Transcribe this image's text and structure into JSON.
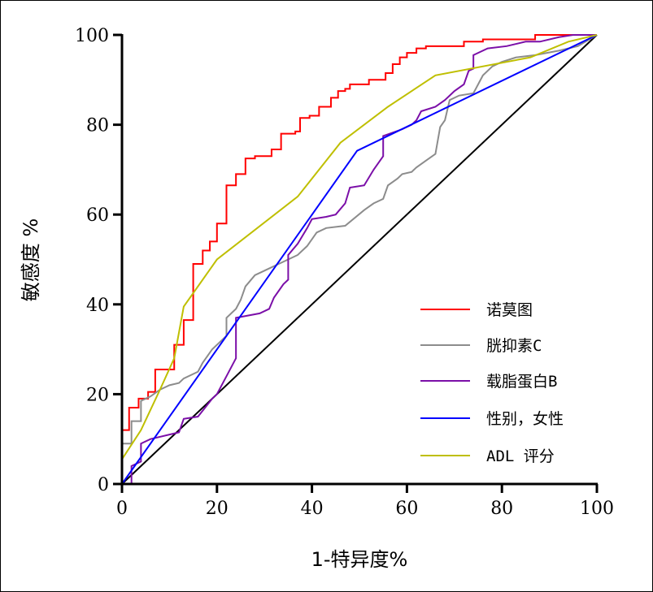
{
  "chart_data": {
    "type": "line",
    "title": "",
    "xlabel": "1-特异度%",
    "ylabel": "敏感度 %",
    "xlim": [
      0,
      100
    ],
    "ylim": [
      0,
      100
    ],
    "xticks": [
      0,
      20,
      40,
      60,
      80,
      100
    ],
    "yticks": [
      0,
      20,
      40,
      60,
      80,
      100
    ],
    "grid": false,
    "legend_position": "bottom-right",
    "reference_line": {
      "color": "#000000",
      "points": [
        [
          0,
          0
        ],
        [
          100,
          100
        ]
      ]
    },
    "series": [
      {
        "name": "诺莫图",
        "color": "#ff0000",
        "points": [
          [
            0,
            0
          ],
          [
            0,
            12
          ],
          [
            1.5,
            12
          ],
          [
            1.5,
            17
          ],
          [
            3.5,
            17
          ],
          [
            3.5,
            19
          ],
          [
            5.5,
            19
          ],
          [
            5.5,
            20.5
          ],
          [
            7,
            20.5
          ],
          [
            7,
            25.5
          ],
          [
            11,
            25.5
          ],
          [
            11,
            31
          ],
          [
            13,
            31
          ],
          [
            13,
            36.5
          ],
          [
            15,
            36.5
          ],
          [
            15,
            49
          ],
          [
            17,
            49
          ],
          [
            17,
            52
          ],
          [
            18.5,
            52
          ],
          [
            18.5,
            54
          ],
          [
            20,
            54
          ],
          [
            20,
            58
          ],
          [
            22,
            58
          ],
          [
            22,
            66.5
          ],
          [
            24,
            66.5
          ],
          [
            24,
            69
          ],
          [
            26,
            69
          ],
          [
            26,
            72.5
          ],
          [
            28,
            72.5
          ],
          [
            28,
            73
          ],
          [
            31.5,
            73
          ],
          [
            31.5,
            74.5
          ],
          [
            33.5,
            74.5
          ],
          [
            33.5,
            78
          ],
          [
            36.5,
            78
          ],
          [
            36.5,
            78.5
          ],
          [
            37.5,
            78.5
          ],
          [
            37.5,
            81.5
          ],
          [
            39.5,
            81.5
          ],
          [
            39.5,
            82
          ],
          [
            41.5,
            82
          ],
          [
            41.5,
            84
          ],
          [
            44,
            84
          ],
          [
            44,
            86
          ],
          [
            45.5,
            86
          ],
          [
            45.5,
            87.5
          ],
          [
            47,
            87.5
          ],
          [
            47,
            88
          ],
          [
            48,
            88
          ],
          [
            48,
            89
          ],
          [
            52,
            89
          ],
          [
            52,
            90
          ],
          [
            55.5,
            90
          ],
          [
            55.5,
            91.5
          ],
          [
            57,
            91.5
          ],
          [
            57,
            93.5
          ],
          [
            58.5,
            93.5
          ],
          [
            58.5,
            95
          ],
          [
            60,
            95
          ],
          [
            60,
            96
          ],
          [
            62,
            96
          ],
          [
            62,
            97
          ],
          [
            64,
            97
          ],
          [
            64,
            97.5
          ],
          [
            72,
            97.5
          ],
          [
            72,
            98.5
          ],
          [
            76,
            98.5
          ],
          [
            76,
            99
          ],
          [
            87,
            99
          ],
          [
            87,
            100
          ],
          [
            100,
            100
          ]
        ]
      },
      {
        "name": "胱抑素C",
        "color": "#8c8c8c",
        "points": [
          [
            0,
            0
          ],
          [
            0,
            9
          ],
          [
            2,
            9
          ],
          [
            2,
            14
          ],
          [
            4,
            14
          ],
          [
            4,
            18.5
          ],
          [
            6,
            19.5
          ],
          [
            8,
            21
          ],
          [
            10,
            22
          ],
          [
            12,
            22.5
          ],
          [
            13,
            23.5
          ],
          [
            16,
            25
          ],
          [
            17,
            27
          ],
          [
            19,
            30
          ],
          [
            21,
            32
          ],
          [
            22,
            33
          ],
          [
            22,
            37
          ],
          [
            24,
            39
          ],
          [
            25,
            41
          ],
          [
            26,
            44
          ],
          [
            28,
            46.5
          ],
          [
            30,
            47.5
          ],
          [
            33,
            49
          ],
          [
            35,
            50
          ],
          [
            37,
            51
          ],
          [
            39,
            53
          ],
          [
            41,
            56
          ],
          [
            43,
            57
          ],
          [
            47,
            57.5
          ],
          [
            51,
            61
          ],
          [
            53,
            62.5
          ],
          [
            55,
            63.5
          ],
          [
            56,
            66.5
          ],
          [
            58,
            68
          ],
          [
            59,
            69
          ],
          [
            61,
            69.5
          ],
          [
            62,
            70.5
          ],
          [
            64,
            72
          ],
          [
            66,
            73.5
          ],
          [
            67,
            79.5
          ],
          [
            68,
            81
          ],
          [
            69,
            85.5
          ],
          [
            71,
            86.5
          ],
          [
            74,
            87
          ],
          [
            76,
            91
          ],
          [
            78,
            93
          ],
          [
            80,
            94
          ],
          [
            83,
            95
          ],
          [
            87,
            95.5
          ],
          [
            92,
            96.5
          ],
          [
            96,
            97.5
          ],
          [
            100,
            100
          ]
        ]
      },
      {
        "name": "载脂蛋白B",
        "color": "#7b0fa8",
        "points": [
          [
            0,
            0
          ],
          [
            2,
            0
          ],
          [
            2,
            4
          ],
          [
            4,
            5
          ],
          [
            4,
            9
          ],
          [
            6,
            10
          ],
          [
            12,
            11.5
          ],
          [
            13,
            14.5
          ],
          [
            16,
            15
          ],
          [
            19,
            19
          ],
          [
            20,
            20
          ],
          [
            22,
            24
          ],
          [
            24,
            28
          ],
          [
            24,
            37
          ],
          [
            29,
            38
          ],
          [
            31,
            39
          ],
          [
            32,
            41.5
          ],
          [
            34,
            44.5
          ],
          [
            35,
            45.5
          ],
          [
            35,
            51
          ],
          [
            37,
            53.5
          ],
          [
            39,
            57
          ],
          [
            40,
            59
          ],
          [
            43,
            59.5
          ],
          [
            45,
            60
          ],
          [
            47,
            62.5
          ],
          [
            48,
            66
          ],
          [
            51,
            66.5
          ],
          [
            53,
            70
          ],
          [
            55,
            73
          ],
          [
            55,
            77.5
          ],
          [
            59,
            79
          ],
          [
            61,
            80
          ],
          [
            62,
            81
          ],
          [
            63,
            83
          ],
          [
            66,
            84
          ],
          [
            68,
            85.5
          ],
          [
            70,
            87.5
          ],
          [
            72,
            89
          ],
          [
            73,
            92
          ],
          [
            74,
            92.5
          ],
          [
            74,
            95.5
          ],
          [
            77,
            97
          ],
          [
            81,
            97.5
          ],
          [
            85,
            98.5
          ],
          [
            88,
            98.5
          ],
          [
            92,
            99.5
          ],
          [
            95,
            100
          ],
          [
            100,
            100
          ]
        ]
      },
      {
        "name": "性别，女性",
        "color": "#0000ff",
        "points": [
          [
            0,
            0
          ],
          [
            49.5,
            74.2
          ],
          [
            100,
            100
          ]
        ]
      },
      {
        "name": "ADL 评分",
        "color": "#bfbf00",
        "points": [
          [
            0,
            5.5
          ],
          [
            4,
            12
          ],
          [
            8,
            21
          ],
          [
            11,
            28
          ],
          [
            13,
            39.5
          ],
          [
            20,
            50
          ],
          [
            37,
            64
          ],
          [
            46,
            76
          ],
          [
            56,
            84
          ],
          [
            66,
            91
          ],
          [
            86,
            95
          ],
          [
            94,
            98.5
          ],
          [
            100,
            100
          ]
        ]
      }
    ]
  }
}
